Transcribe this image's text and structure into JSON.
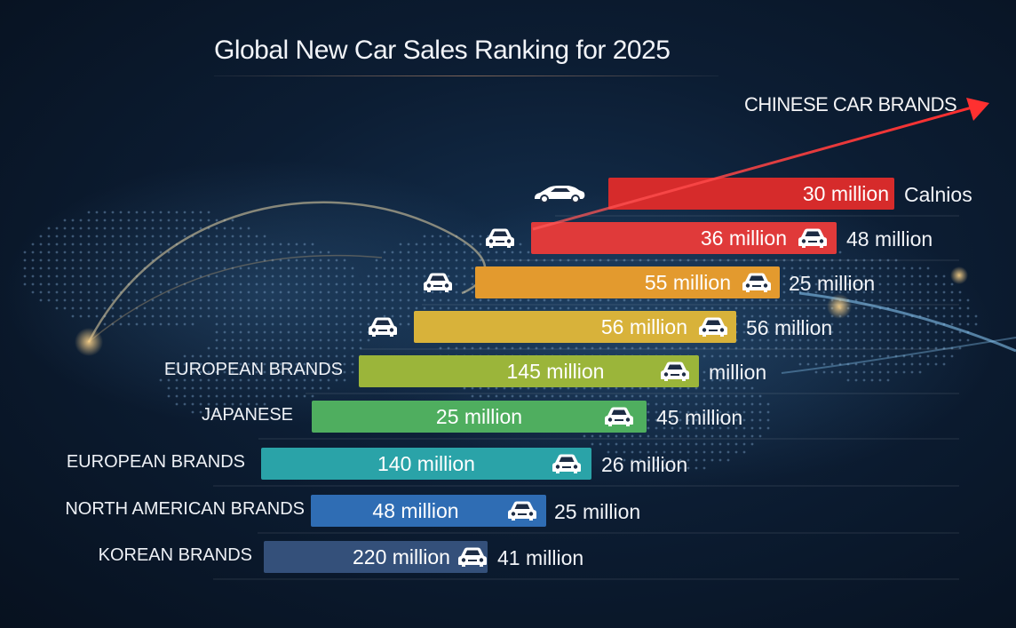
{
  "title": "Global New Car Sales Ranking for 2025",
  "callout": "CHINESE CAR BRANDS",
  "colors": {
    "background": "#0c1d33",
    "arrow": "#ff3b3b",
    "text": "#f2f4f8"
  },
  "chart_data": {
    "type": "bar",
    "orientation": "horizontal",
    "title": "Global New Car Sales Ranking for 2025",
    "annotation": "CHINESE CAR BRANDS",
    "rows": [
      {
        "category": "",
        "bar_label": "30 million",
        "side_label": "Calnios",
        "color": "#d62b2b",
        "icon": "sports-car-icon"
      },
      {
        "category": "",
        "bar_label": "36 million",
        "side_label": "48 million",
        "color": "#e03a3a",
        "icon": "car-icon"
      },
      {
        "category": "",
        "bar_label": "55 million",
        "side_label": "25 million",
        "color": "#e39a2e",
        "icon": "car-icon"
      },
      {
        "category": "",
        "bar_label": "56 million",
        "side_label": "56 million",
        "color": "#d8b23a",
        "icon": "car-icon"
      },
      {
        "category": "EUROPEAN BRANDS",
        "bar_label": "145 million",
        "side_label": "million",
        "color": "#9bb53a",
        "icon": "car-icon"
      },
      {
        "category": "JAPANESE",
        "bar_label": "25 million",
        "side_label": "45 million",
        "color": "#4fae5f",
        "icon": "car-icon"
      },
      {
        "category": "EUROPEAN BRANDS",
        "bar_label": "140 million",
        "side_label": "26 million",
        "color": "#2aa3a8",
        "icon": "car-icon"
      },
      {
        "category": "NORTH AMERICAN BRANDS",
        "bar_label": "48 million",
        "side_label": "25 million",
        "color": "#2f6db4",
        "icon": "car-icon"
      },
      {
        "category": "KOREAN BRANDS",
        "bar_label": "220 million",
        "side_label": "41 million",
        "color": "#34507a",
        "icon": "car-icon"
      }
    ]
  }
}
